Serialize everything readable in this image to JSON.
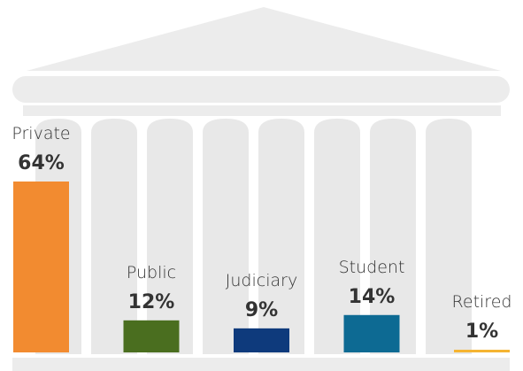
{
  "chart_data": {
    "type": "bar",
    "categories": [
      "Private",
      "Public",
      "Judiciary",
      "Student",
      "Retired"
    ],
    "values": [
      64,
      12,
      9,
      14,
      1
    ],
    "value_labels": [
      "64%",
      "12%",
      "9%",
      "14%",
      "1%"
    ],
    "colors": [
      "#f28b30",
      "#4a6e1f",
      "#0e3a7c",
      "#0d6a93",
      "#f5b432"
    ]
  }
}
